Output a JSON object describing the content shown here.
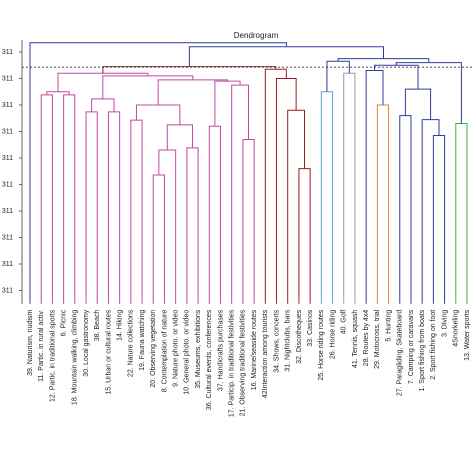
{
  "chart_data": {
    "type": "dendrogram",
    "title": "Dendrogram",
    "ylim": [
      -0.5,
      9.5
    ],
    "yticks": [
      {
        "value": 0,
        "label": "311"
      },
      {
        "value": 1,
        "label": "311"
      },
      {
        "value": 2,
        "label": "311"
      },
      {
        "value": 3,
        "label": "311"
      },
      {
        "value": 4,
        "label": "311"
      },
      {
        "value": 5,
        "label": "311"
      },
      {
        "value": 6,
        "label": "311"
      },
      {
        "value": 7,
        "label": "311"
      },
      {
        "value": 8,
        "label": "311"
      },
      {
        "value": 9,
        "label": "311"
      }
    ],
    "cut_height": 8.43,
    "leaves": [
      "39. Naturism, nudism",
      "11. Partic. in rural activ.",
      "12. Partic. in traditional sports",
      "6. Picnic",
      "18. Mountain walking, climbing",
      "30. Local gastronomy",
      "38. Beach",
      "15. Urban or cultural routes",
      "14. Hiking",
      "22. Nature collections",
      "19. Fauna watching",
      "20. Observing vegetation",
      "8. Contemplation of nature",
      "9. Nature photo. or video",
      "10. General photo. or video",
      "35. Museums, exhibitions",
      "36. Cultural events, conferences",
      "37. Handicrafts purchases",
      "17. Particip. in traditional festivities",
      "21. Observing traditional festivities",
      "16. Marine/seaside routes",
      "42Interaction among tourists",
      "34. Shows, concerts",
      "31. Nightclubs, bars",
      "32. Discotheques",
      "33. Casinos",
      "25. Horse riding routes",
      "26. Horse riding",
      "40. Golf",
      "41. Tennis, squash",
      "28. Routes by 4x4",
      "29. Motocross, trial",
      "5. Hunting",
      "27. Paragliding, Skateboard",
      "7. Camping or caravans",
      "1. Sport fishing from boats",
      "2. Sport fishing on foot",
      "3. Diving",
      "4Snorkeling",
      "13. Water sports"
    ],
    "merges": [
      {
        "children": [
          1,
          2
        ],
        "height": 7.38,
        "color": "#c2489f"
      },
      {
        "children": [
          3,
          4
        ],
        "height": 7.38,
        "color": "#c2489f"
      },
      {
        "children": [
          5,
          6
        ],
        "height": 6.74,
        "color": "#c2489f"
      },
      {
        "children": [
          7,
          8
        ],
        "height": 6.74,
        "color": "#c2489f"
      },
      {
        "children": [
          42,
          43
        ],
        "height": 7.23,
        "color": "#c2489f"
      },
      {
        "children": [
          11,
          12
        ],
        "height": 4.36,
        "color": "#c2489f"
      },
      {
        "children": [
          45,
          13
        ],
        "height": 5.3,
        "color": "#c2489f"
      },
      {
        "children": [
          14,
          15
        ],
        "height": 5.38,
        "color": "#c2489f"
      },
      {
        "children": [
          46,
          47
        ],
        "height": 6.25,
        "color": "#c2489f"
      },
      {
        "children": [
          9,
          10
        ],
        "height": 6.43,
        "color": "#c2489f"
      },
      {
        "children": [
          49,
          48
        ],
        "height": 7.0,
        "color": "#c2489f"
      },
      {
        "children": [
          16,
          17
        ],
        "height": 6.2,
        "color": "#c2489f"
      },
      {
        "children": [
          19,
          20
        ],
        "height": 5.7,
        "color": "#c2489f"
      },
      {
        "children": [
          18,
          52
        ],
        "height": 7.75,
        "color": "#c2489f"
      },
      {
        "children": [
          51,
          53
        ],
        "height": 7.9,
        "color": "#c2489f"
      },
      {
        "children": [
          50,
          54
        ],
        "height": 7.95,
        "color": "#c2489f"
      },
      {
        "children": [
          44,
          55
        ],
        "height": 8.1,
        "color": "#c2489f"
      },
      {
        "children": [
          40,
          41
        ],
        "height": 7.5,
        "color": "#c2489f"
      },
      {
        "children": [
          57,
          56
        ],
        "height": 8.2,
        "color": "#c2489f"
      },
      {
        "children": [
          24,
          25
        ],
        "height": 4.6,
        "color": "#9b1c1c"
      },
      {
        "children": [
          23,
          59
        ],
        "height": 6.8,
        "color": "#9b1c1c"
      },
      {
        "children": [
          22,
          60
        ],
        "height": 8.0,
        "color": "#9b1c1c"
      },
      {
        "children": [
          21,
          61
        ],
        "height": 8.35,
        "color": "#9b1c1c"
      },
      {
        "children": [
          58,
          62
        ],
        "height": 8.45,
        "color": "#7a2a3a"
      },
      {
        "children": [
          26,
          27
        ],
        "height": 7.5,
        "color": "#5aa6d6"
      },
      {
        "children": [
          28,
          29
        ],
        "height": 8.2,
        "color": "#9a9a9a"
      },
      {
        "children": [
          64,
          65
        ],
        "height": 8.65,
        "color": "#2e3c9c"
      },
      {
        "children": [
          31,
          32
        ],
        "height": 7.0,
        "color": "#e0842c"
      },
      {
        "children": [
          30,
          67
        ],
        "height": 8.3,
        "color": "#2e3c9c"
      },
      {
        "children": [
          36,
          37
        ],
        "height": 5.85,
        "color": "#2e3c9c"
      },
      {
        "children": [
          35,
          69
        ],
        "height": 6.45,
        "color": "#2e3c9c"
      },
      {
        "children": [
          33,
          34
        ],
        "height": 6.6,
        "color": "#2e3c9c"
      },
      {
        "children": [
          71,
          70
        ],
        "height": 7.6,
        "color": "#2e3c9c"
      },
      {
        "children": [
          68,
          72
        ],
        "height": 8.5,
        "color": "#2e3c9c"
      },
      {
        "children": [
          38,
          39
        ],
        "height": 6.3,
        "color": "#3cb43c"
      },
      {
        "children": [
          73,
          74
        ],
        "height": 8.6,
        "color": "#2e3c9c"
      },
      {
        "children": [
          66,
          75
        ],
        "height": 8.75,
        "color": "#2e3c9c"
      },
      {
        "children": [
          63,
          76
        ],
        "height": 9.2,
        "color": "#2e3c9c"
      },
      {
        "children": [
          0,
          77
        ],
        "height": 9.35,
        "color": "#2e3c9c"
      }
    ]
  }
}
